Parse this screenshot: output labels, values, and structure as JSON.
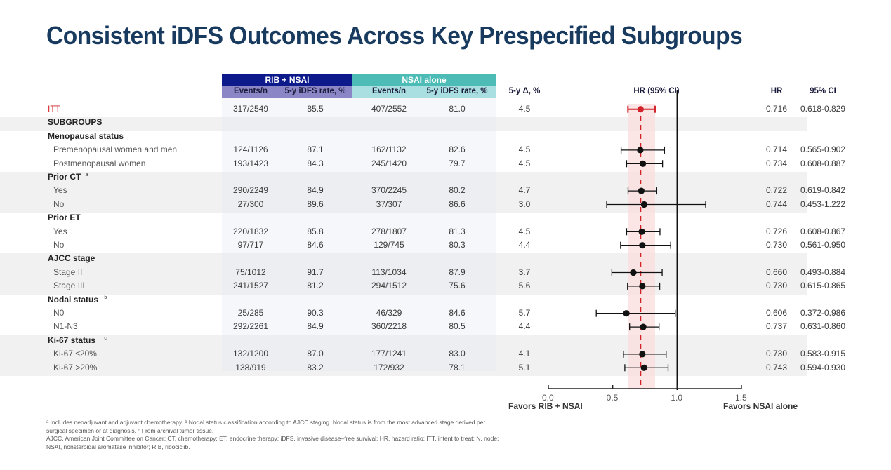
{
  "title": "Consistent iDFS Outcomes Across Key Prespecified Subgroups",
  "table": {
    "arm_rib": "RIB + NSAI",
    "arm_nsai": "NSAI alone",
    "col_events_rib": "Events/n",
    "col_rate_rib": "5-y iDFS rate, %",
    "col_events_nsai": "Events/n",
    "col_rate_nsai": "5-y iDFS rate, %",
    "col_delta": "5-y Δ, %",
    "col_hrci": "HR (95% CI)",
    "col_hr": "HR",
    "col_ci": "95% CI"
  },
  "colors": {
    "title": "#173a5e",
    "rib_header": "#0d1a8c",
    "rib_subheader": "#8b86c6",
    "nsai_header": "#4dbcb7",
    "nsai_subheader": "#a9dfe0",
    "itt": "#d2232a",
    "ci_band": "#f9dcdc"
  },
  "chart_data": {
    "type": "forest",
    "title": "Consistent iDFS Outcomes Across Key Prespecified Subgroups",
    "xlabel": "HR (95% CI)",
    "xlim": [
      0.0,
      1.5
    ],
    "xticks": [
      "0.0",
      "0.5",
      "1.0",
      "1.5"
    ],
    "reference_line": 1.0,
    "itt_reference": {
      "hr": 0.716,
      "ci_low": 0.618,
      "ci_high": 0.829
    },
    "favors_left": "Favors RIB + NSAI",
    "favors_right": "Favors NSAI alone",
    "rows": [
      {
        "kind": "itt",
        "label": "ITT",
        "rib_events": "317/2549",
        "rib_rate": "85.5",
        "nsai_events": "407/2552",
        "nsai_rate": "81.0",
        "delta": "4.5",
        "hr": 0.716,
        "ci_low": 0.618,
        "ci_high": 0.829,
        "hr_text": "0.716",
        "ci_text": "0.618-0.829"
      },
      {
        "kind": "section",
        "label": "SUBGROUPS"
      },
      {
        "kind": "group",
        "label": "Menopausal status",
        "sup": ""
      },
      {
        "kind": "item",
        "label": "Premenopausal women and men",
        "rib_events": "124/1126",
        "rib_rate": "87.1",
        "nsai_events": "162/1132",
        "nsai_rate": "82.6",
        "delta": "4.5",
        "hr": 0.714,
        "ci_low": 0.565,
        "ci_high": 0.902,
        "hr_text": "0.714",
        "ci_text": "0.565-0.902"
      },
      {
        "kind": "item",
        "label": "Postmenopausal women",
        "rib_events": "193/1423",
        "rib_rate": "84.3",
        "nsai_events": "245/1420",
        "nsai_rate": "79.7",
        "delta": "4.5",
        "hr": 0.734,
        "ci_low": 0.608,
        "ci_high": 0.887,
        "hr_text": "0.734",
        "ci_text": "0.608-0.887"
      },
      {
        "kind": "group",
        "label": "Prior CT",
        "sup": "a"
      },
      {
        "kind": "item",
        "label": "Yes",
        "rib_events": "290/2249",
        "rib_rate": "84.9",
        "nsai_events": "370/2245",
        "nsai_rate": "80.2",
        "delta": "4.7",
        "hr": 0.722,
        "ci_low": 0.619,
        "ci_high": 0.842,
        "hr_text": "0.722",
        "ci_text": "0.619-0.842"
      },
      {
        "kind": "item",
        "label": "No",
        "rib_events": "27/300",
        "rib_rate": "89.6",
        "nsai_events": "37/307",
        "nsai_rate": "86.6",
        "delta": "3.0",
        "hr": 0.744,
        "ci_low": 0.453,
        "ci_high": 1.222,
        "hr_text": "0.744",
        "ci_text": "0.453-1.222"
      },
      {
        "kind": "group",
        "label": "Prior ET",
        "sup": ""
      },
      {
        "kind": "item",
        "label": "Yes",
        "rib_events": "220/1832",
        "rib_rate": "85.8",
        "nsai_events": "278/1807",
        "nsai_rate": "81.3",
        "delta": "4.5",
        "hr": 0.726,
        "ci_low": 0.608,
        "ci_high": 0.867,
        "hr_text": "0.726",
        "ci_text": "0.608-0.867"
      },
      {
        "kind": "item",
        "label": "No",
        "rib_events": "97/717",
        "rib_rate": "84.6",
        "nsai_events": "129/745",
        "nsai_rate": "80.3",
        "delta": "4.4",
        "hr": 0.73,
        "ci_low": 0.561,
        "ci_high": 0.95,
        "hr_text": "0.730",
        "ci_text": "0.561-0.950"
      },
      {
        "kind": "group",
        "label": "AJCC stage",
        "sup": ""
      },
      {
        "kind": "item",
        "label": "Stage II",
        "rib_events": "75/1012",
        "rib_rate": "91.7",
        "nsai_events": "113/1034",
        "nsai_rate": "87.9",
        "delta": "3.7",
        "hr": 0.66,
        "ci_low": 0.493,
        "ci_high": 0.884,
        "hr_text": "0.660",
        "ci_text": "0.493-0.884"
      },
      {
        "kind": "item",
        "label": "Stage III",
        "rib_events": "241/1527",
        "rib_rate": "81.2",
        "nsai_events": "294/1512",
        "nsai_rate": "75.6",
        "delta": "5.6",
        "hr": 0.73,
        "ci_low": 0.615,
        "ci_high": 0.865,
        "hr_text": "0.730",
        "ci_text": "0.615-0.865"
      },
      {
        "kind": "group",
        "label": "Nodal status",
        "sup": "b"
      },
      {
        "kind": "item",
        "label": "N0",
        "rib_events": "25/285",
        "rib_rate": "90.3",
        "nsai_events": "46/329",
        "nsai_rate": "84.6",
        "delta": "5.7",
        "hr": 0.606,
        "ci_low": 0.372,
        "ci_high": 0.986,
        "hr_text": "0.606",
        "ci_text": "0.372-0.986"
      },
      {
        "kind": "item",
        "label": "N1-N3",
        "rib_events": "292/2261",
        "rib_rate": "84.9",
        "nsai_events": "360/2218",
        "nsai_rate": "80.5",
        "delta": "4.4",
        "hr": 0.737,
        "ci_low": 0.631,
        "ci_high": 0.86,
        "hr_text": "0.737",
        "ci_text": "0.631-0.860"
      },
      {
        "kind": "group",
        "label": "Ki-67 status",
        "sup": "c"
      },
      {
        "kind": "item",
        "label": "Ki-67 ≤20%",
        "rib_events": "132/1200",
        "rib_rate": "87.0",
        "nsai_events": "177/1241",
        "nsai_rate": "83.0",
        "delta": "4.1",
        "hr": 0.73,
        "ci_low": 0.583,
        "ci_high": 0.915,
        "hr_text": "0.730",
        "ci_text": "0.583-0.915"
      },
      {
        "kind": "item",
        "label": "Ki-67 >20%",
        "rib_events": "138/919",
        "rib_rate": "83.2",
        "nsai_events": "172/932",
        "nsai_rate": "78.1",
        "delta": "5.1",
        "hr": 0.743,
        "ci_low": 0.594,
        "ci_high": 0.93,
        "hr_text": "0.743",
        "ci_text": "0.594-0.930"
      }
    ]
  },
  "footnotes": [
    "ᵃ Includes neoadjuvant and adjuvant chemotherapy. ᵇ Nodal status classification according to AJCC staging. Nodal status is from the most advanced stage derived per surgical specimen or at diagnosis. ᶜ From archival tumor tissue.",
    "AJCC, American Joint Committee on Cancer; CT, chemotherapy; ET, endocrine therapy; iDFS, invasive disease–free survival; HR, hazard ratio; ITT, intent to treat; N, node; NSAI, nonsteroidal aromatase inhibitor; RIB, ribociclib."
  ]
}
